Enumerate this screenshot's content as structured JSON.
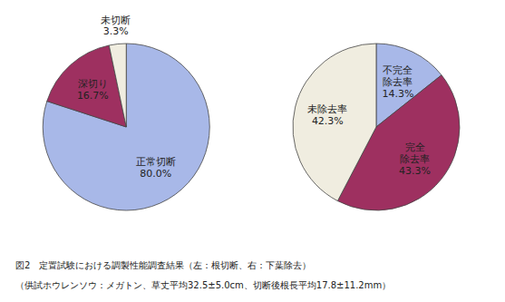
{
  "chart_data": [
    {
      "type": "pie",
      "categories": [
        "正常切断",
        "深切り",
        "未切断"
      ],
      "values": [
        80.0,
        16.7,
        3.3
      ],
      "value_labels": [
        "80.0%",
        "16.7%",
        "3.3%"
      ],
      "colors": [
        "#a8b8e8",
        "#9e3060",
        "#f0ede0"
      ]
    },
    {
      "type": "pie",
      "categories": [
        "不完全\n除去率",
        "完全\n除去率",
        "未除去率"
      ],
      "values": [
        14.3,
        43.3,
        42.3
      ],
      "value_labels": [
        "14.3%",
        "43.3%",
        "42.3%"
      ],
      "colors": [
        "#a8b8e8",
        "#9e3060",
        "#f0ede0"
      ]
    }
  ],
  "caption": [
    "図2　定置試験における調製性能調査結果（左：根切断、右：下葉除去）",
    "（供試ホウレンソウ：メガトン、草丈平均32.5±5.0cm、切断後根長平均17.8±11.2mm）"
  ]
}
